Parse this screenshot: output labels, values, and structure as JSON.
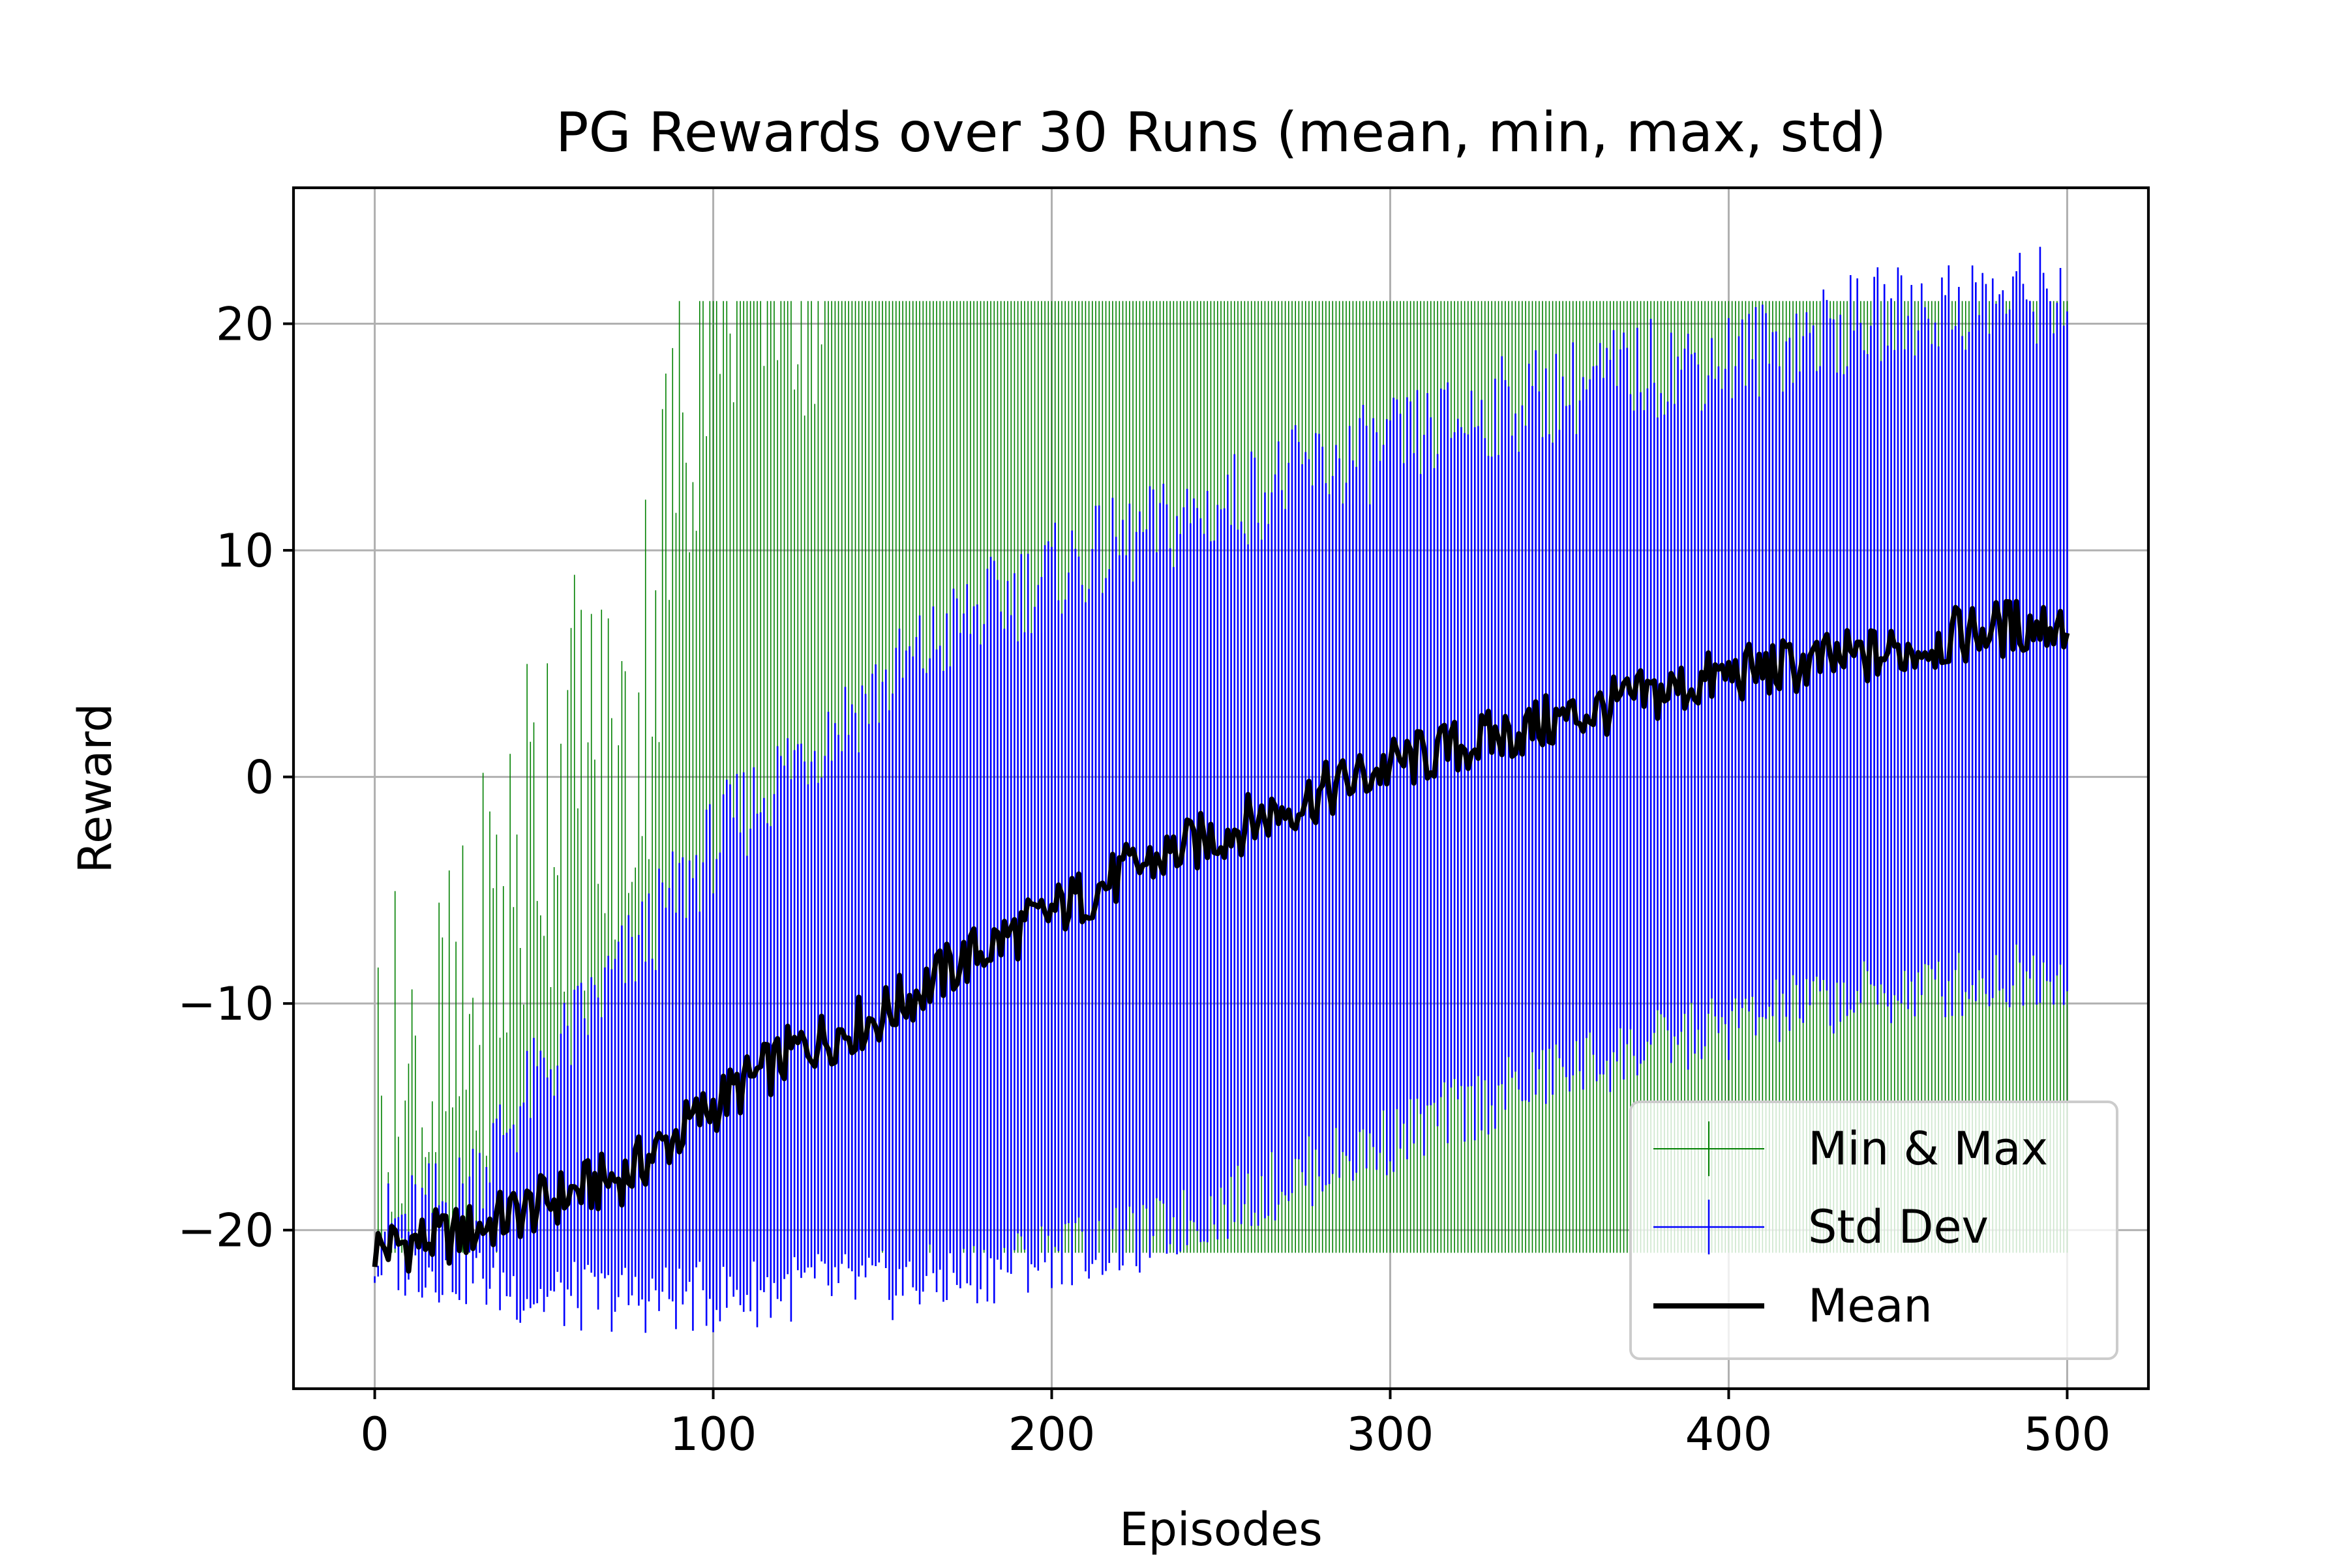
{
  "chart_data": {
    "type": "line",
    "title": "PG Rewards over 30 Runs (mean, min, max, std)",
    "xlabel": "Episodes",
    "ylabel": "Reward",
    "xlim": [
      -24,
      524
    ],
    "ylim": [
      -27,
      26
    ],
    "x_ticks": [
      0,
      100,
      200,
      300,
      400,
      500
    ],
    "y_ticks": [
      -20,
      -10,
      0,
      10,
      20
    ],
    "x_tick_labels": [
      "0",
      "100",
      "200",
      "300",
      "400",
      "500"
    ],
    "y_tick_labels": [
      "−20",
      "−10",
      "0",
      "10",
      "20"
    ],
    "grid": true,
    "legend_position": "bottom-right",
    "episodes": {
      "start": 0,
      "end": 500,
      "step": 1,
      "runs": 30
    },
    "series": [
      {
        "name": "Min & Max",
        "kind": "errorbar",
        "color": "#008000",
        "x": [
          0,
          25,
          50,
          75,
          100,
          125,
          150,
          175,
          200,
          225,
          250,
          275,
          300,
          325,
          350,
          375,
          400,
          425,
          450,
          475,
          500
        ],
        "max": [
          -19,
          -17,
          -4,
          -4,
          21,
          21,
          21,
          21,
          21,
          21,
          21,
          21,
          21,
          21,
          21,
          21,
          21,
          21,
          21,
          21,
          21
        ],
        "min": [
          -21,
          -21,
          -21,
          -21,
          -21,
          -21,
          -21,
          -21,
          -21,
          -21,
          -21,
          -21,
          -21,
          -21,
          -21,
          -21,
          -21,
          -21,
          -21,
          -21,
          -21
        ]
      },
      {
        "name": "Std Dev",
        "kind": "errorbar",
        "color": "#0000ff",
        "x": [
          0,
          25,
          50,
          75,
          100,
          125,
          150,
          175,
          200,
          225,
          250,
          275,
          300,
          325,
          350,
          375,
          400,
          425,
          450,
          475,
          500
        ],
        "upper": [
          -20.2,
          -18.5,
          -13,
          -8,
          -3,
          1,
          4,
          7,
          9,
          10.5,
          12,
          13.5,
          14.5,
          16,
          17,
          18,
          18.5,
          19.5,
          20.5,
          21,
          21.5
        ],
        "lower": [
          -21.3,
          -21.8,
          -23,
          -23,
          -23,
          -22.5,
          -22.5,
          -22,
          -21,
          -20.5,
          -19,
          -17.5,
          -16,
          -14.5,
          -13,
          -12,
          -11,
          -10,
          -9.5,
          -9,
          -8.5
        ]
      },
      {
        "name": "Mean",
        "kind": "line",
        "color": "#000000",
        "x": [
          0,
          25,
          50,
          75,
          100,
          125,
          150,
          175,
          200,
          225,
          250,
          275,
          300,
          325,
          350,
          375,
          400,
          425,
          450,
          475,
          500
        ],
        "values": [
          -20.8,
          -20.2,
          -18.8,
          -17.5,
          -14.5,
          -12,
          -10.5,
          -8,
          -6,
          -4,
          -2.5,
          -1,
          0.5,
          1.5,
          2.5,
          3.5,
          4.5,
          5,
          5.5,
          6.5,
          6.8
        ]
      }
    ]
  }
}
